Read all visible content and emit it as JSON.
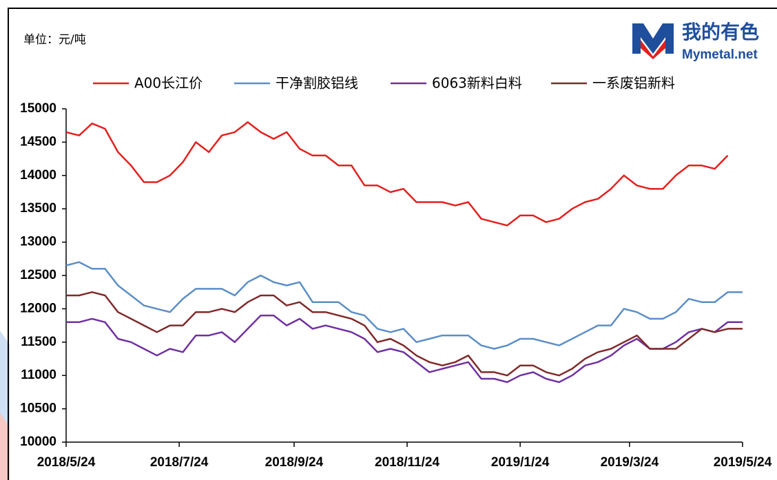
{
  "chart_data": {
    "type": "line",
    "unit_label": "单位：元/吨",
    "logo": {
      "name": "我的有色",
      "site": "Mymetal.net"
    },
    "x": [
      "2018/5/24",
      "2018/5/31",
      "2018/6/7",
      "2018/6/14",
      "2018/6/21",
      "2018/6/28",
      "2018/7/5",
      "2018/7/12",
      "2018/7/19",
      "2018/7/26",
      "2018/8/2",
      "2018/8/9",
      "2018/8/16",
      "2018/8/23",
      "2018/8/30",
      "2018/9/6",
      "2018/9/13",
      "2018/9/20",
      "2018/9/27",
      "2018/10/4",
      "2018/10/11",
      "2018/10/18",
      "2018/10/25",
      "2018/11/1",
      "2018/11/8",
      "2018/11/15",
      "2018/11/22",
      "2018/11/29",
      "2018/12/6",
      "2018/12/13",
      "2018/12/20",
      "2018/12/27",
      "2019/1/3",
      "2019/1/10",
      "2019/1/17",
      "2019/1/24",
      "2019/1/31",
      "2019/2/7",
      "2019/2/14",
      "2019/2/21",
      "2019/2/28",
      "2019/3/7",
      "2019/3/14",
      "2019/3/21",
      "2019/3/28",
      "2019/4/4",
      "2019/4/11",
      "2019/4/18",
      "2019/4/25",
      "2019/5/2",
      "2019/5/9",
      "2019/5/16",
      "2019/5/24"
    ],
    "series": [
      {
        "name": "A00长江价",
        "color": "#e3201e",
        "values": [
          14650,
          14600,
          14780,
          14700,
          14350,
          14150,
          13900,
          13900,
          14000,
          14200,
          14500,
          14350,
          14600,
          14650,
          14800,
          14650,
          14550,
          14650,
          14400,
          14300,
          14300,
          14150,
          14150,
          13850,
          13850,
          13750,
          13800,
          13600,
          13600,
          13600,
          13550,
          13600,
          13350,
          13300,
          13250,
          13400,
          13400,
          13300,
          13350,
          13500,
          13600,
          13650,
          13800,
          14000,
          13850,
          13800,
          13800,
          14000,
          14150,
          14150,
          14100,
          14300,
          null
        ]
      },
      {
        "name": "干净割胶铝线",
        "color": "#5b8ec6",
        "values": [
          12650,
          12700,
          12600,
          12600,
          12350,
          12200,
          12050,
          12000,
          11950,
          12150,
          12300,
          12300,
          12300,
          12200,
          12400,
          12500,
          12400,
          12350,
          12400,
          12100,
          12100,
          12100,
          11950,
          11900,
          11700,
          11650,
          11700,
          11500,
          11550,
          11600,
          11600,
          11600,
          11450,
          11400,
          11450,
          11550,
          11550,
          11500,
          11450,
          11550,
          11650,
          11750,
          11750,
          12000,
          11950,
          11850,
          11850,
          11950,
          12150,
          12100,
          12100,
          12250,
          12250
        ]
      },
      {
        "name": "6063新料白料",
        "color": "#7030a0",
        "values": [
          11800,
          11800,
          11850,
          11800,
          11550,
          11500,
          11400,
          11300,
          11400,
          11350,
          11600,
          11600,
          11650,
          11500,
          11700,
          11900,
          11900,
          11750,
          11850,
          11700,
          11750,
          11700,
          11650,
          11550,
          11350,
          11400,
          11350,
          11200,
          11050,
          11100,
          11150,
          11200,
          10950,
          10950,
          10900,
          11000,
          11050,
          10950,
          10900,
          11000,
          11150,
          11200,
          11300,
          11450,
          11550,
          11400,
          11400,
          11500,
          11650,
          11700,
          11650,
          11800,
          11800
        ]
      },
      {
        "name": "一系废铝新料",
        "color": "#7f2a2a",
        "values": [
          12200,
          12200,
          12250,
          12200,
          11950,
          11850,
          11750,
          11650,
          11750,
          11750,
          11950,
          11950,
          12000,
          11950,
          12100,
          12200,
          12200,
          12050,
          12100,
          11950,
          11950,
          11900,
          11850,
          11750,
          11500,
          11550,
          11450,
          11300,
          11200,
          11150,
          11200,
          11300,
          11050,
          11050,
          11000,
          11150,
          11150,
          11050,
          11000,
          11100,
          11250,
          11350,
          11400,
          11500,
          11600,
          11400,
          11400,
          11400,
          11550,
          11700,
          11650,
          11700,
          11700
        ]
      }
    ],
    "xlim": [
      "2018/5/24",
      "2019/5/24"
    ],
    "xticks": [
      "2018/5/24",
      "2018/7/24",
      "2018/9/24",
      "2018/11/24",
      "2019/1/24",
      "2019/3/24",
      "2019/5/24"
    ],
    "ylim": [
      10000,
      15000
    ],
    "yticks": [
      10000,
      10500,
      11000,
      11500,
      12000,
      12500,
      13000,
      13500,
      14000,
      14500,
      15000
    ],
    "grid": false
  }
}
